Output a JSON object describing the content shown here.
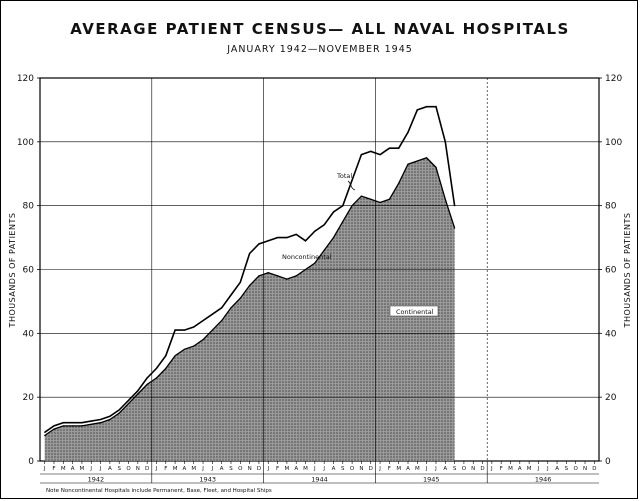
{
  "title": "AVERAGE PATIENT CENSUS— ALL NAVAL HOSPITALS",
  "subtitle": "JANUARY 1942—NOVEMBER 1945",
  "chart_data": {
    "type": "area",
    "title": "AVERAGE PATIENT CENSUS— ALL NAVAL HOSPITALS",
    "subtitle": "JANUARY 1942—NOVEMBER 1945",
    "ylabel": "THOUSANDS OF PATIENTS",
    "ylabel_right": "THOUSANDS OF PATIENTS",
    "ylim": [
      0,
      120
    ],
    "yticks": [
      "0",
      "20",
      "40",
      "60",
      "80",
      "100",
      "120"
    ],
    "month_labels": [
      "J",
      "F",
      "M",
      "A",
      "M",
      "J",
      "J",
      "A",
      "S",
      "O",
      "N",
      "D"
    ],
    "years": [
      "1942",
      "1943",
      "1944",
      "1945",
      "1946"
    ],
    "grid": true,
    "series": [
      {
        "name": "Total",
        "values": [
          9,
          11,
          12,
          12,
          12,
          12.5,
          13,
          14,
          16,
          19,
          22,
          26,
          29,
          33,
          41,
          41,
          42,
          44,
          46,
          48,
          52,
          56,
          65,
          68,
          69,
          70,
          70,
          71,
          69,
          72,
          74,
          78,
          80,
          88,
          96,
          97,
          96,
          98,
          98,
          103,
          110,
          111,
          111,
          100,
          80
        ]
      },
      {
        "name": "Continental",
        "values": [
          8,
          10,
          11,
          11,
          11,
          11.5,
          12,
          13,
          15,
          18,
          21,
          24,
          26,
          29,
          33,
          35,
          36,
          38,
          41,
          44,
          48,
          51,
          55,
          58,
          59,
          58,
          57,
          58,
          60,
          62,
          66,
          70,
          75,
          80,
          83,
          82,
          81,
          82,
          87,
          93,
          94,
          95,
          92,
          82,
          73
        ]
      }
    ],
    "annotations": [
      "Total",
      "Noncontinental",
      "Continental"
    ],
    "note": "Note Noncontinental Hospitals include Permanent, Base, Fleet, and Hospital Ships"
  },
  "labels": {
    "total": "Total",
    "noncontinental": "Noncontinental",
    "continental": "Continental",
    "note": "Note Noncontinental Hospitals include Permanent, Base, Fleet, and Hospital Ships",
    "ylabel": "THOUSANDS OF PATIENTS"
  }
}
